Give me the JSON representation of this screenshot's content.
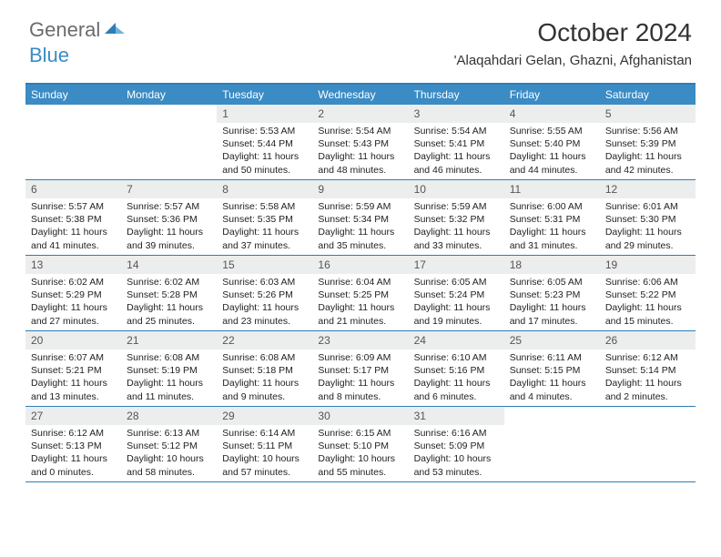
{
  "logo": {
    "part1": "General",
    "part2": "Blue"
  },
  "title": "October 2024",
  "location": "'Alaqahdari Gelan, Ghazni, Afghanistan",
  "colors": {
    "header_bg": "#3b8bc4",
    "header_border": "#2f7db6",
    "daynum_bg": "#eceded",
    "text": "#222222",
    "logo_gray": "#6b6b6b",
    "logo_blue": "#3b8bc4"
  },
  "day_names": [
    "Sunday",
    "Monday",
    "Tuesday",
    "Wednesday",
    "Thursday",
    "Friday",
    "Saturday"
  ],
  "weeks": [
    [
      {
        "n": "",
        "empty": true
      },
      {
        "n": "",
        "empty": true
      },
      {
        "n": "1",
        "sr": "5:53 AM",
        "ss": "5:44 PM",
        "dl": "11 hours and 50 minutes."
      },
      {
        "n": "2",
        "sr": "5:54 AM",
        "ss": "5:43 PM",
        "dl": "11 hours and 48 minutes."
      },
      {
        "n": "3",
        "sr": "5:54 AM",
        "ss": "5:41 PM",
        "dl": "11 hours and 46 minutes."
      },
      {
        "n": "4",
        "sr": "5:55 AM",
        "ss": "5:40 PM",
        "dl": "11 hours and 44 minutes."
      },
      {
        "n": "5",
        "sr": "5:56 AM",
        "ss": "5:39 PM",
        "dl": "11 hours and 42 minutes."
      }
    ],
    [
      {
        "n": "6",
        "sr": "5:57 AM",
        "ss": "5:38 PM",
        "dl": "11 hours and 41 minutes."
      },
      {
        "n": "7",
        "sr": "5:57 AM",
        "ss": "5:36 PM",
        "dl": "11 hours and 39 minutes."
      },
      {
        "n": "8",
        "sr": "5:58 AM",
        "ss": "5:35 PM",
        "dl": "11 hours and 37 minutes."
      },
      {
        "n": "9",
        "sr": "5:59 AM",
        "ss": "5:34 PM",
        "dl": "11 hours and 35 minutes."
      },
      {
        "n": "10",
        "sr": "5:59 AM",
        "ss": "5:32 PM",
        "dl": "11 hours and 33 minutes."
      },
      {
        "n": "11",
        "sr": "6:00 AM",
        "ss": "5:31 PM",
        "dl": "11 hours and 31 minutes."
      },
      {
        "n": "12",
        "sr": "6:01 AM",
        "ss": "5:30 PM",
        "dl": "11 hours and 29 minutes."
      }
    ],
    [
      {
        "n": "13",
        "sr": "6:02 AM",
        "ss": "5:29 PM",
        "dl": "11 hours and 27 minutes."
      },
      {
        "n": "14",
        "sr": "6:02 AM",
        "ss": "5:28 PM",
        "dl": "11 hours and 25 minutes."
      },
      {
        "n": "15",
        "sr": "6:03 AM",
        "ss": "5:26 PM",
        "dl": "11 hours and 23 minutes."
      },
      {
        "n": "16",
        "sr": "6:04 AM",
        "ss": "5:25 PM",
        "dl": "11 hours and 21 minutes."
      },
      {
        "n": "17",
        "sr": "6:05 AM",
        "ss": "5:24 PM",
        "dl": "11 hours and 19 minutes."
      },
      {
        "n": "18",
        "sr": "6:05 AM",
        "ss": "5:23 PM",
        "dl": "11 hours and 17 minutes."
      },
      {
        "n": "19",
        "sr": "6:06 AM",
        "ss": "5:22 PM",
        "dl": "11 hours and 15 minutes."
      }
    ],
    [
      {
        "n": "20",
        "sr": "6:07 AM",
        "ss": "5:21 PM",
        "dl": "11 hours and 13 minutes."
      },
      {
        "n": "21",
        "sr": "6:08 AM",
        "ss": "5:19 PM",
        "dl": "11 hours and 11 minutes."
      },
      {
        "n": "22",
        "sr": "6:08 AM",
        "ss": "5:18 PM",
        "dl": "11 hours and 9 minutes."
      },
      {
        "n": "23",
        "sr": "6:09 AM",
        "ss": "5:17 PM",
        "dl": "11 hours and 8 minutes."
      },
      {
        "n": "24",
        "sr": "6:10 AM",
        "ss": "5:16 PM",
        "dl": "11 hours and 6 minutes."
      },
      {
        "n": "25",
        "sr": "6:11 AM",
        "ss": "5:15 PM",
        "dl": "11 hours and 4 minutes."
      },
      {
        "n": "26",
        "sr": "6:12 AM",
        "ss": "5:14 PM",
        "dl": "11 hours and 2 minutes."
      }
    ],
    [
      {
        "n": "27",
        "sr": "6:12 AM",
        "ss": "5:13 PM",
        "dl": "11 hours and 0 minutes."
      },
      {
        "n": "28",
        "sr": "6:13 AM",
        "ss": "5:12 PM",
        "dl": "10 hours and 58 minutes."
      },
      {
        "n": "29",
        "sr": "6:14 AM",
        "ss": "5:11 PM",
        "dl": "10 hours and 57 minutes."
      },
      {
        "n": "30",
        "sr": "6:15 AM",
        "ss": "5:10 PM",
        "dl": "10 hours and 55 minutes."
      },
      {
        "n": "31",
        "sr": "6:16 AM",
        "ss": "5:09 PM",
        "dl": "10 hours and 53 minutes."
      },
      {
        "n": "",
        "empty": true
      },
      {
        "n": "",
        "empty": true
      }
    ]
  ],
  "labels": {
    "sunrise": "Sunrise:",
    "sunset": "Sunset:",
    "daylight": "Daylight:"
  }
}
